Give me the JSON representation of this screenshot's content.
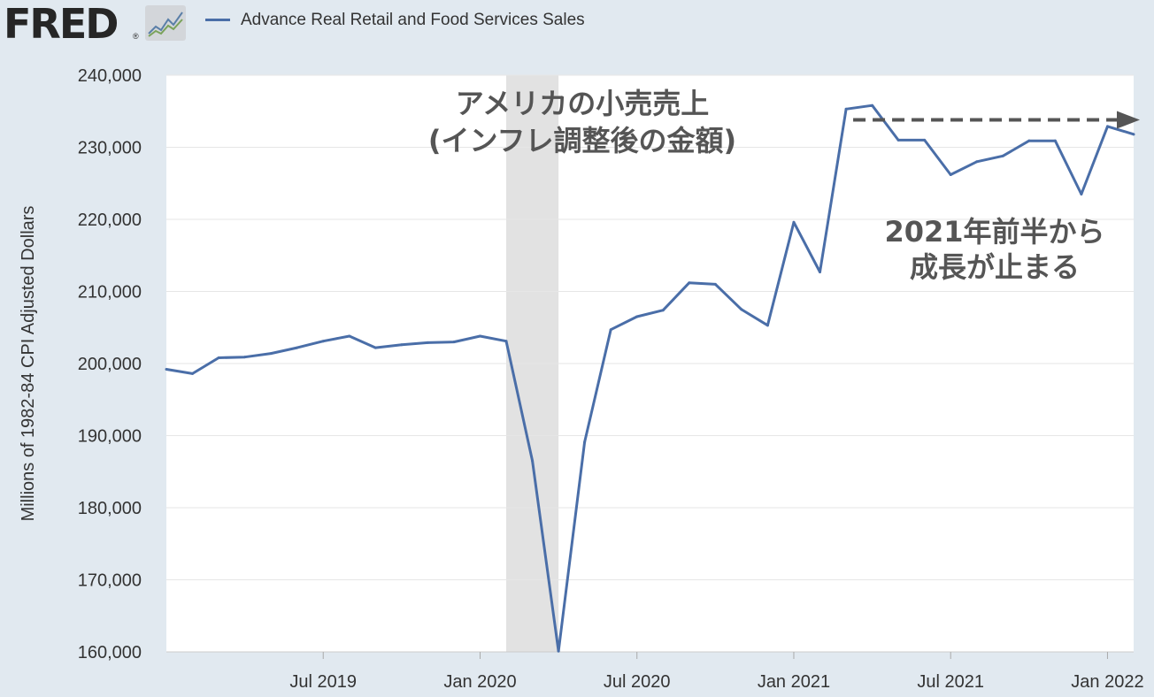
{
  "logo": {
    "text": "FRED",
    "registered": "®",
    "icon": "line-chart-icon"
  },
  "legend": {
    "label": "Advance Real Retail and Food Services Sales",
    "color": "#4a6ea8"
  },
  "chart_data": {
    "type": "line",
    "title": "",
    "ylabel": "Millions of 1982-84 CPI Adjusted Dollars",
    "ylim": [
      160000,
      240000
    ],
    "yticks": [
      160000,
      170000,
      180000,
      190000,
      200000,
      210000,
      220000,
      230000,
      240000
    ],
    "ytick_labels": [
      "160,000",
      "170,000",
      "180,000",
      "190,000",
      "200,000",
      "210,000",
      "220,000",
      "230,000",
      "240,000"
    ],
    "xlim": [
      "2019-01",
      "2022-02"
    ],
    "xtick_labels": [
      {
        "date": "2019-07",
        "label": "Jul 2019"
      },
      {
        "date": "2020-01",
        "label": "Jan 2020"
      },
      {
        "date": "2020-07",
        "label": "Jul 2020"
      },
      {
        "date": "2021-01",
        "label": "Jan 2021"
      },
      {
        "date": "2021-07",
        "label": "Jul 2021"
      },
      {
        "date": "2022-01",
        "label": "Jan 2022"
      }
    ],
    "grid": true,
    "line_color": "#4a6ea8",
    "recession": {
      "start": "2020-02",
      "end": "2020-04",
      "color": "#e2e2e2"
    },
    "series": [
      {
        "name": "Advance Real Retail and Food Services Sales",
        "x": [
          "2019-01",
          "2019-02",
          "2019-03",
          "2019-04",
          "2019-05",
          "2019-06",
          "2019-07",
          "2019-08",
          "2019-09",
          "2019-10",
          "2019-11",
          "2019-12",
          "2020-01",
          "2020-02",
          "2020-03",
          "2020-04",
          "2020-05",
          "2020-06",
          "2020-07",
          "2020-08",
          "2020-09",
          "2020-10",
          "2020-11",
          "2020-12",
          "2021-01",
          "2021-02",
          "2021-03",
          "2021-04",
          "2021-05",
          "2021-06",
          "2021-07",
          "2021-08",
          "2021-09",
          "2021-10",
          "2021-11",
          "2021-12",
          "2022-01",
          "2022-02"
        ],
        "values": [
          199200,
          198600,
          200800,
          200900,
          201400,
          202200,
          203100,
          203800,
          202200,
          202600,
          202900,
          203000,
          203800,
          203100,
          186500,
          160100,
          189100,
          204700,
          206500,
          207400,
          211200,
          211000,
          207500,
          205300,
          219600,
          212700,
          235300,
          235800,
          231000,
          231000,
          226200,
          228000,
          228800,
          230900,
          230900,
          223500,
          232900,
          231800
        ]
      }
    ],
    "annotations": [
      {
        "lines": [
          "アメリカの小売売上",
          "(インフレ調整後の金額)"
        ]
      },
      {
        "lines": [
          "2021年前半から",
          "成長が止まる"
        ]
      }
    ],
    "reference_arrow": {
      "from": "2021-03",
      "to": "2022-02",
      "y": 233800,
      "style": "dashed",
      "color": "#555555"
    }
  }
}
